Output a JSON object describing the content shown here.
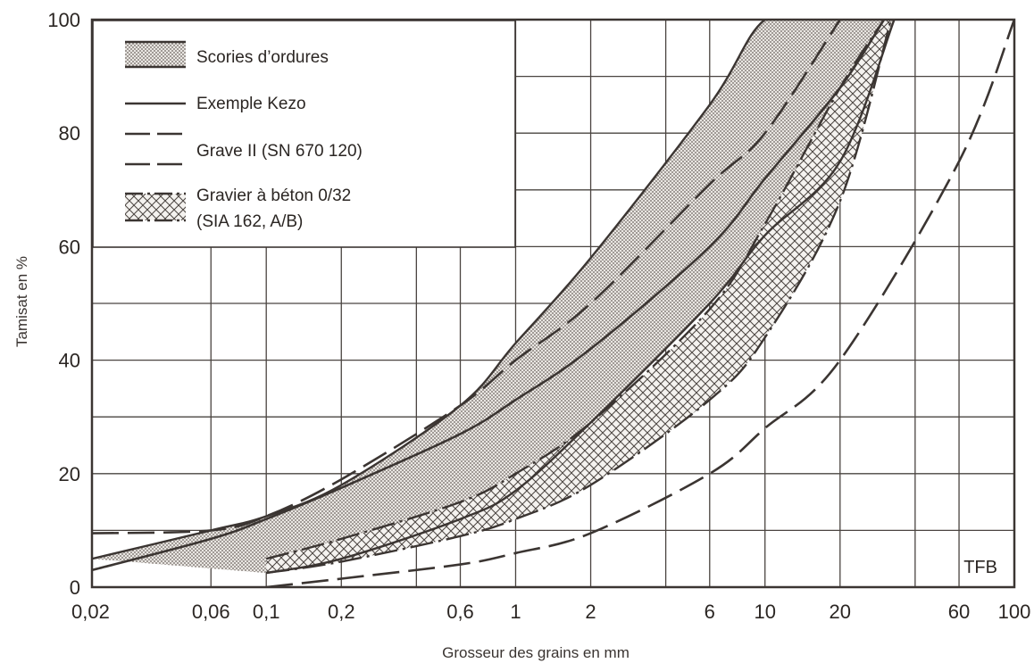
{
  "chart_data": {
    "type": "line",
    "xscale": "log",
    "xlim": [
      0.02,
      100
    ],
    "ylim": [
      0,
      100
    ],
    "grid": true,
    "legend_position": "top-left",
    "xlabel": "Grosseur des grains en mm",
    "ylabel": "Tamisat en %",
    "x_ticks": [
      0.02,
      0.06,
      0.1,
      0.2,
      0.6,
      1,
      2,
      6,
      10,
      20,
      60,
      100
    ],
    "x_tick_labels": [
      "0,02",
      "0,06",
      "0,1",
      "0,2",
      "0,6",
      "1",
      "2",
      "6",
      "10",
      "20",
      "60",
      "100"
    ],
    "y_ticks": [
      0,
      20,
      40,
      60,
      80,
      100
    ],
    "y_tick_labels": [
      "0",
      "20",
      "40",
      "60",
      "80",
      "100"
    ],
    "annotation": "TFB",
    "legend": [
      {
        "label": "Scories d’ordures",
        "style": "dotted-band"
      },
      {
        "label": "Exemple Kezo",
        "style": "solid"
      },
      {
        "label": "Grave II (SN 670 120)",
        "style": "dashed"
      },
      {
        "label": "Gravier à béton 0/32",
        "label2": "(SIA 162, A/B)",
        "style": "dash-dot-hatched-band"
      }
    ],
    "bands": [
      {
        "name": "Scories d’ordures",
        "upper": {
          "x": [
            0.02,
            0.06,
            0.1,
            0.2,
            0.6,
            1,
            2,
            6,
            10,
            17
          ],
          "y": [
            5,
            10,
            12.5,
            18,
            32,
            43,
            58,
            85,
            100,
            100
          ]
        },
        "lower": {
          "x": [
            0.1,
            0.2,
            0.6,
            1,
            2,
            6,
            10,
            20,
            33
          ],
          "y": [
            2.5,
            5,
            12,
            17,
            29,
            50,
            62,
            75,
            100
          ]
        }
      },
      {
        "name": "Gravier à béton 0/32",
        "upper": {
          "x": [
            0.1,
            0.2,
            0.6,
            1,
            2,
            6,
            10,
            20,
            30
          ],
          "y": [
            5,
            8.5,
            15,
            20,
            29,
            49,
            64,
            88,
            100
          ]
        },
        "lower": {
          "x": [
            0.1,
            0.2,
            0.6,
            1,
            2,
            6,
            10,
            20,
            32
          ],
          "y": [
            2.5,
            4.5,
            9,
            12,
            18,
            33,
            44,
            68,
            100
          ]
        }
      }
    ],
    "series": [
      {
        "name": "Exemple Kezo",
        "style": "solid",
        "x": [
          0.02,
          0.06,
          0.1,
          0.2,
          0.6,
          1,
          2,
          6,
          10,
          20,
          30
        ],
        "y": [
          3,
          8.5,
          12,
          17.5,
          27,
          33,
          42,
          60,
          72,
          88,
          100
        ]
      },
      {
        "name": "Grave II (SN 670 120)",
        "style": "dashed",
        "x": [
          0.02,
          0.06,
          0.1,
          0.2,
          0.6,
          1,
          2,
          6,
          10,
          20
        ],
        "y": [
          9.5,
          10,
          12.5,
          19,
          32,
          40,
          50,
          71,
          80,
          100
        ]
      },
      {
        "name": "Grave II (SN 670 120)",
        "style": "dashed",
        "x": [
          0.1,
          0.2,
          0.6,
          1,
          2,
          6,
          10,
          20,
          60,
          100
        ],
        "y": [
          0,
          1.5,
          4,
          6,
          9.5,
          20,
          28,
          40,
          75,
          100
        ]
      }
    ]
  }
}
